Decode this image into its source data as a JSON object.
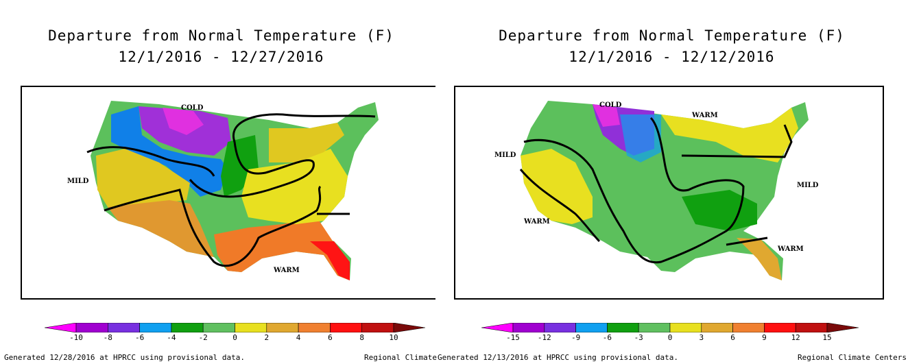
{
  "left": {
    "title_line1": "Departure from Normal Temperature (F)",
    "title_line2": "12/1/2016 - 12/27/2016",
    "labels": {
      "cold": "COLD",
      "mild": "MILD",
      "warm": "WARM"
    },
    "colorbar": {
      "ticks": [
        "-10",
        "-8",
        "-6",
        "-4",
        "-2",
        "0",
        "2",
        "4",
        "6",
        "8",
        "10"
      ],
      "colors": [
        "#ff00ff",
        "#a000d0",
        "#7830e0",
        "#10a0f0",
        "#10a010",
        "#60c060",
        "#e8e020",
        "#e0a830",
        "#f08030",
        "#ff1010",
        "#c01010",
        "#7a0a0a"
      ]
    },
    "footer_left": "Generated 12/28/2016 at HPRCC using provisional data.",
    "footer_right": "Regional Climate"
  },
  "right": {
    "title_line1": "Departure from Normal Temperature (F)",
    "title_line2": "12/1/2016 - 12/12/2016",
    "labels": {
      "cold": "COLD",
      "warm_ne": "WARM",
      "mild_w": "MILD",
      "mild_e": "MILD",
      "warm_sw": "WARM",
      "warm_se": "WARM"
    },
    "colorbar": {
      "ticks": [
        "-15",
        "-12",
        "-9",
        "-6",
        "-3",
        "0",
        "3",
        "6",
        "9",
        "12",
        "15"
      ],
      "colors": [
        "#ff00ff",
        "#a000d0",
        "#7830e0",
        "#10a0f0",
        "#10a010",
        "#60c060",
        "#e8e020",
        "#e0a830",
        "#f08030",
        "#ff1010",
        "#c01010",
        "#7a0a0a"
      ]
    },
    "footer_left": "Generated 12/13/2016 at HPRCC using provisional data.",
    "footer_right": "Regional Climate Centers"
  }
}
